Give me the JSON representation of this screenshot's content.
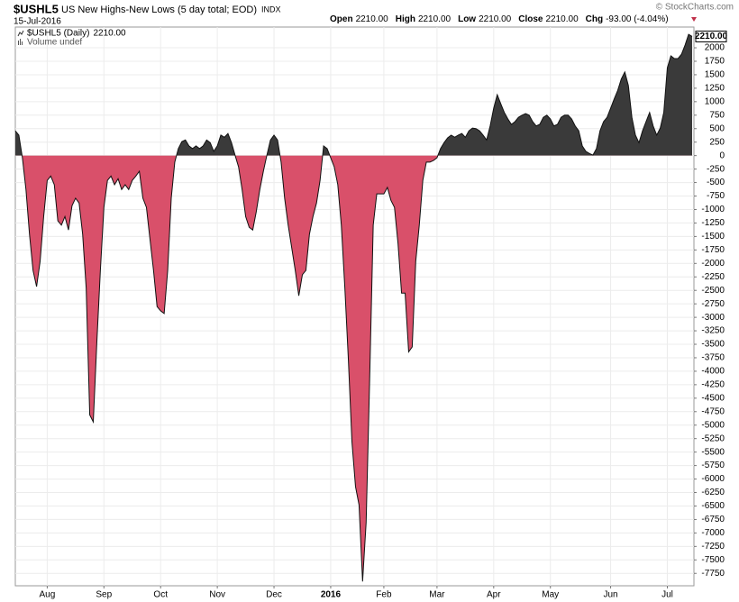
{
  "chart_data": {
    "type": "area",
    "symbol": "$USHL5",
    "title": "US New Highs-New Lows (5 day total; EOD)",
    "exchange": "INDX",
    "date": "15-Jul-2016",
    "watermark": "© StockCharts.com",
    "quote": [
      {
        "label": "Open",
        "value": "2210.00"
      },
      {
        "label": "High",
        "value": "2210.00"
      },
      {
        "label": "Low",
        "value": "2210.00"
      },
      {
        "label": "Close",
        "value": "2210.00"
      },
      {
        "label": "Chg",
        "value": "-93.00 (-4.04%)"
      }
    ],
    "legend_value": "2210.00",
    "volume_note": "Volume undef",
    "last_value_label": "2210.00",
    "ylim": [
      -7980,
      2385
    ],
    "yticks": [
      2000,
      1750,
      1500,
      1250,
      1000,
      750,
      500,
      250,
      0,
      -250,
      -500,
      -750,
      -1000,
      -1250,
      -1500,
      -1750,
      -2000,
      -2250,
      -2500,
      -2750,
      -3000,
      -3250,
      -3500,
      -3750,
      -4000,
      -4250,
      -4500,
      -4750,
      -5000,
      -5250,
      -5500,
      -5750,
      -6000,
      -6250,
      -6500,
      -6750,
      -7000,
      -7250,
      -7500,
      -7750
    ],
    "grid": true,
    "categories": [
      null,
      null,
      null,
      null,
      null,
      null,
      null,
      null,
      null,
      "Aug",
      null,
      null,
      null,
      null,
      null,
      null,
      null,
      null,
      null,
      null,
      null,
      null,
      null,
      null,
      null,
      "Sep",
      null,
      null,
      null,
      null,
      null,
      null,
      null,
      null,
      null,
      null,
      null,
      null,
      null,
      null,
      null,
      "Oct",
      null,
      null,
      null,
      null,
      null,
      null,
      null,
      null,
      null,
      null,
      null,
      null,
      null,
      null,
      null,
      "Nov",
      null,
      null,
      null,
      null,
      null,
      null,
      null,
      null,
      null,
      null,
      null,
      null,
      null,
      null,
      null,
      "Dec",
      null,
      null,
      null,
      null,
      null,
      null,
      null,
      null,
      null,
      null,
      null,
      null,
      null,
      null,
      null,
      "2016",
      null,
      null,
      null,
      null,
      null,
      null,
      null,
      null,
      null,
      null,
      null,
      null,
      null,
      null,
      "Feb",
      null,
      null,
      null,
      null,
      null,
      null,
      null,
      null,
      null,
      null,
      null,
      null,
      null,
      null,
      "Mar",
      null,
      null,
      null,
      null,
      null,
      null,
      null,
      null,
      null,
      null,
      null,
      null,
      null,
      null,
      null,
      "Apr",
      null,
      null,
      null,
      null,
      null,
      null,
      null,
      null,
      null,
      null,
      null,
      null,
      null,
      null,
      null,
      "May",
      null,
      null,
      null,
      null,
      null,
      null,
      null,
      null,
      null,
      null,
      null,
      null,
      null,
      null,
      null,
      null,
      "Jun",
      null,
      null,
      null,
      null,
      null,
      null,
      null,
      null,
      null,
      null,
      null,
      null,
      null,
      null,
      null,
      "Jul",
      null,
      null,
      null,
      null,
      null,
      null,
      null
    ],
    "series": [
      {
        "name": "$USHL5 (Daily)",
        "color": "#3a3a3a",
        "negative_color": "#d9506a",
        "values": [
          460,
          380,
          -40,
          -630,
          -1460,
          -2130,
          -2430,
          -1960,
          -1130,
          -460,
          -380,
          -540,
          -1210,
          -1290,
          -1130,
          -1380,
          -930,
          -790,
          -880,
          -1460,
          -2460,
          -4810,
          -4940,
          -3470,
          -2130,
          -960,
          -460,
          -380,
          -540,
          -430,
          -630,
          -540,
          -630,
          -460,
          -380,
          -290,
          -790,
          -960,
          -1550,
          -2130,
          -2800,
          -2880,
          -2930,
          -2130,
          -790,
          -120,
          130,
          260,
          290,
          180,
          130,
          180,
          130,
          180,
          290,
          240,
          80,
          180,
          380,
          340,
          410,
          240,
          10,
          -210,
          -630,
          -1130,
          -1330,
          -1380,
          -1040,
          -630,
          -290,
          10,
          290,
          380,
          290,
          -120,
          -790,
          -1290,
          -1710,
          -2130,
          -2600,
          -2210,
          -2130,
          -1460,
          -1130,
          -880,
          -460,
          180,
          130,
          -40,
          -210,
          -540,
          -1290,
          -2460,
          -3800,
          -5310,
          -6140,
          -6480,
          -7900,
          -6810,
          -4140,
          -1290,
          -710,
          -710,
          -710,
          -590,
          -830,
          -960,
          -1630,
          -2550,
          -2550,
          -3640,
          -3550,
          -1960,
          -1290,
          -460,
          -120,
          -120,
          -90,
          -40,
          130,
          240,
          330,
          380,
          340,
          380,
          410,
          340,
          460,
          510,
          500,
          460,
          380,
          290,
          550,
          880,
          1130,
          960,
          800,
          680,
          580,
          630,
          710,
          750,
          780,
          750,
          630,
          550,
          580,
          710,
          750,
          680,
          550,
          580,
          710,
          750,
          750,
          680,
          550,
          460,
          180,
          80,
          40,
          10,
          130,
          460,
          630,
          710,
          880,
          1050,
          1210,
          1420,
          1550,
          1300,
          710,
          380,
          240,
          460,
          630,
          800,
          550,
          380,
          510,
          800,
          1630,
          1850,
          1800,
          1800,
          1880,
          2050,
          2250,
          2210
        ]
      }
    ]
  }
}
